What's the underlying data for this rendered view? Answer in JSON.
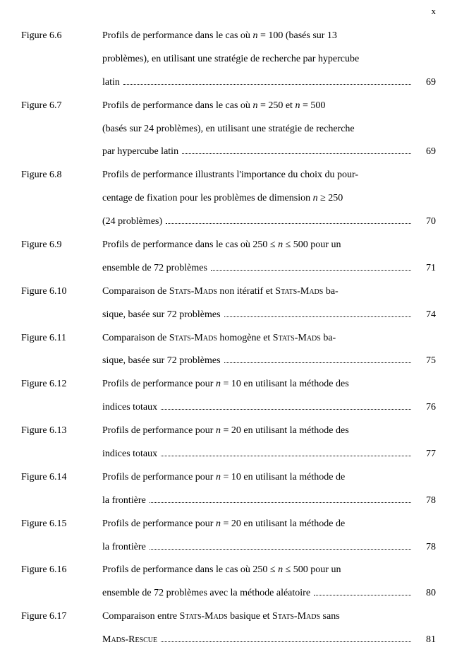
{
  "page_marker": "x",
  "entries": [
    {
      "label": "Figure 6.6",
      "lines": [
        "Profils de performance dans le cas où <span class=\"math\">n</span> = 100 (basés sur 13",
        "problèmes), en utilisant une stratégie de recherche par hypercube"
      ],
      "last": "latin",
      "page": "69"
    },
    {
      "label": "Figure 6.7",
      "lines": [
        "Profils de performance dans le cas où <span class=\"math\">n</span> = 250 et <span class=\"math\">n</span> = 500",
        "(basés sur 24 problèmes), en utilisant une stratégie de recherche"
      ],
      "last": "par hypercube latin",
      "page": "69"
    },
    {
      "label": "Figure 6.8",
      "lines": [
        "Profils de performance illustrants l'importance du choix du pour-",
        "centage de fixation pour les problèmes de dimension <span class=\"math\">n</span> ≥ 250"
      ],
      "last": "(24 problèmes)",
      "page": "70"
    },
    {
      "label": "Figure 6.9",
      "lines": [
        "Profils de performance dans le cas où 250 ≤ <span class=\"math\">n</span> ≤ 500 pour un"
      ],
      "last": "ensemble de 72 problèmes",
      "page": "71"
    },
    {
      "label": "Figure 6.10",
      "lines": [
        "Comparaison de S<span class=\"sc\">tats</span>-M<span class=\"sc\">ads</span> non itératif et S<span class=\"sc\">tats</span>-M<span class=\"sc\">ads</span> ba-"
      ],
      "last": "sique, basée sur 72 problèmes",
      "page": "74"
    },
    {
      "label": "Figure 6.11",
      "lines": [
        "Comparaison de S<span class=\"sc\">tats</span>-M<span class=\"sc\">ads</span> homogène et S<span class=\"sc\">tats</span>-M<span class=\"sc\">ads</span> ba-"
      ],
      "last": "sique, basée sur 72 problèmes",
      "page": "75"
    },
    {
      "label": "Figure 6.12",
      "lines": [
        "Profils de performance pour <span class=\"math\">n</span> = 10 en utilisant la méthode des"
      ],
      "last": "indices totaux",
      "page": "76"
    },
    {
      "label": "Figure 6.13",
      "lines": [
        "Profils de performance pour <span class=\"math\">n</span> = 20 en utilisant la méthode des"
      ],
      "last": "indices totaux",
      "page": "77"
    },
    {
      "label": "Figure 6.14",
      "lines": [
        "Profils de performance pour <span class=\"math\">n</span> = 10 en utilisant la méthode de"
      ],
      "last": "la frontière",
      "page": "78"
    },
    {
      "label": "Figure 6.15",
      "lines": [
        "Profils de performance pour <span class=\"math\">n</span> = 20 en utilisant la méthode de"
      ],
      "last": "la frontière",
      "page": "78"
    },
    {
      "label": "Figure 6.16",
      "lines": [
        "Profils de performance dans le cas où 250 ≤ <span class=\"math\">n</span> ≤ 500 pour un"
      ],
      "last": "ensemble de 72 problèmes avec la méthode aléatoire",
      "page": "80"
    },
    {
      "label": "Figure 6.17",
      "lines": [
        "Comparaison entre S<span class=\"sc\">tats</span>-M<span class=\"sc\">ads</span> basique et S<span class=\"sc\">tats</span>-M<span class=\"sc\">ads</span> sans"
      ],
      "last": "M<span class=\"sc\">ads</span>-R<span class=\"sc\">escue</span>",
      "page": "81"
    }
  ]
}
